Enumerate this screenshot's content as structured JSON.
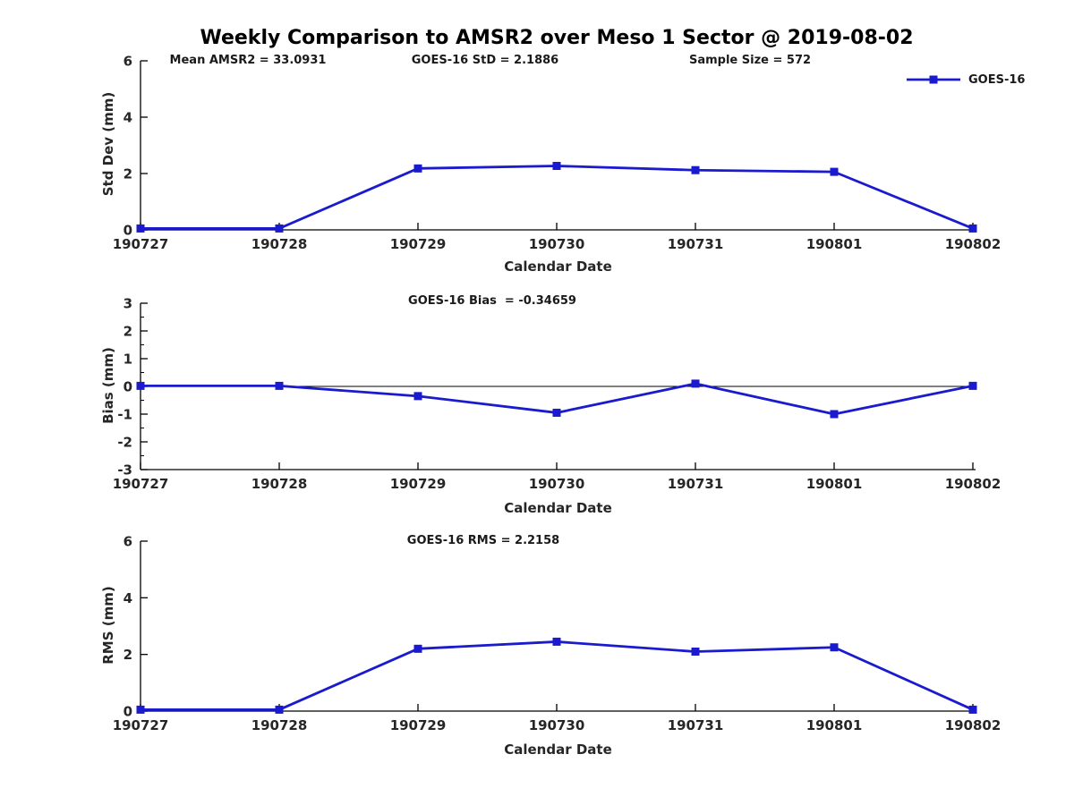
{
  "title": "Weekly Comparison to AMSR2 over Meso 1 Sector @ 2019-08-02",
  "legend": {
    "label": "GOES-16"
  },
  "annotations": {
    "mean_amsr2": "Mean AMSR2 = 33.0931",
    "goes_std": "GOES-16 StD = 2.1886",
    "sample_size": "Sample Size = 572",
    "goes_bias": "GOES-16 Bias  = -0.34659",
    "goes_rms": "GOES-16 RMS = 2.2158"
  },
  "colors": {
    "line": "#1a1ace",
    "axis": "#000000",
    "text": "#262626"
  },
  "chart_data": [
    {
      "type": "line",
      "name": "std-dev-panel",
      "categories": [
        "190727",
        "190728",
        "190729",
        "190730",
        "190731",
        "190801",
        "190802"
      ],
      "series": [
        {
          "name": "GOES-16",
          "values": [
            0.05,
            0.05,
            2.18,
            2.27,
            2.12,
            2.06,
            0.05
          ]
        }
      ],
      "xlabel": "Calendar Date",
      "ylabel": "Std Dev (mm)",
      "ylim": [
        0,
        6
      ],
      "yticks": [
        0,
        2,
        4,
        6
      ],
      "ytick_labels": [
        "0",
        "2",
        "4",
        "6"
      ],
      "yticks_minor": [],
      "zero_line": false,
      "legend_position": "upper right outside",
      "grid": false
    },
    {
      "type": "line",
      "name": "bias-panel",
      "categories": [
        "190727",
        "190728",
        "190729",
        "190730",
        "190731",
        "190801",
        "190802"
      ],
      "series": [
        {
          "name": "GOES-16",
          "values": [
            0.02,
            0.02,
            -0.35,
            -0.95,
            0.1,
            -1.0,
            0.02
          ]
        }
      ],
      "xlabel": "Calendar Date",
      "ylabel": "Bias (mm)",
      "ylim": [
        -3,
        3
      ],
      "yticks": [
        -3,
        -2,
        -1,
        0,
        1,
        2,
        3
      ],
      "ytick_labels": [
        "-3",
        "-2",
        "-1",
        "0",
        "1",
        "2",
        "3"
      ],
      "yticks_minor": [
        -2.5,
        -1.5,
        -0.5,
        0.5,
        1.5,
        2.5
      ],
      "zero_line": true,
      "grid": false
    },
    {
      "type": "line",
      "name": "rms-panel",
      "categories": [
        "190727",
        "190728",
        "190729",
        "190730",
        "190731",
        "190801",
        "190802"
      ],
      "series": [
        {
          "name": "GOES-16",
          "values": [
            0.05,
            0.05,
            2.2,
            2.45,
            2.1,
            2.25,
            0.05
          ]
        }
      ],
      "xlabel": "Calendar Date",
      "ylabel": "RMS (mm)",
      "ylim": [
        0,
        6
      ],
      "yticks": [
        0,
        2,
        4,
        6
      ],
      "ytick_labels": [
        "0",
        "2",
        "4",
        "6"
      ],
      "yticks_minor": [],
      "zero_line": false,
      "grid": false
    }
  ]
}
